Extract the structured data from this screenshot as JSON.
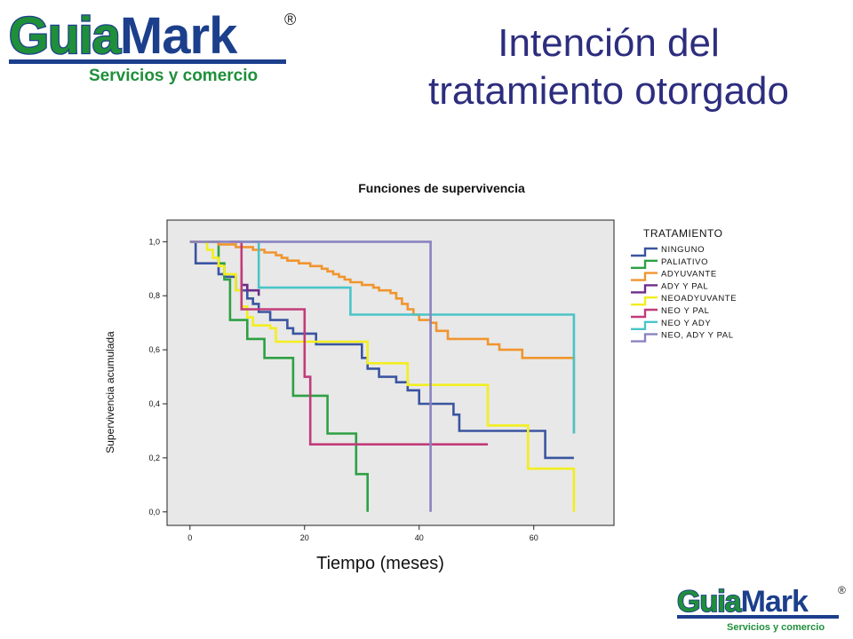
{
  "slide": {
    "title_line1": "Intención del",
    "title_line2": "tratamiento otorgado"
  },
  "logo": {
    "word_part1": "Guia",
    "word_part2": "Mark",
    "registered": "®",
    "tagline": "Servicios y comercio"
  },
  "colors": {
    "title": "#2d2d7f",
    "logo_green": "#1f8f3a",
    "logo_blue": "#1c3f8c",
    "plot_background": "#e8e8e8"
  },
  "chart_data": {
    "type": "line",
    "step": true,
    "title": "Funciones de supervivencia",
    "xlabel": "Tiempo (meses)",
    "ylabel": "Supervivencia acumulada",
    "xlim": [
      -4,
      74
    ],
    "ylim": [
      -0.05,
      1.08
    ],
    "x_ticks": [
      0,
      20,
      40,
      60
    ],
    "x_tick_labels": [
      "0",
      "20",
      "40",
      "60"
    ],
    "y_ticks": [
      0.0,
      0.2,
      0.4,
      0.6,
      0.8,
      1.0
    ],
    "y_tick_labels": [
      "0,0",
      "0,2",
      "0,4",
      "0,6",
      "0,8",
      "1,0"
    ],
    "grid": false,
    "legend_title": "TRATAMIENTO",
    "legend_position": "right",
    "series": [
      {
        "name": "NINGUNO",
        "color": "#3a55a0",
        "points": [
          [
            0,
            1.0
          ],
          [
            1,
            0.92
          ],
          [
            3,
            0.92
          ],
          [
            5,
            0.88
          ],
          [
            6,
            0.87
          ],
          [
            8,
            0.82
          ],
          [
            10,
            0.79
          ],
          [
            11,
            0.77
          ],
          [
            12,
            0.74
          ],
          [
            14,
            0.71
          ],
          [
            17,
            0.68
          ],
          [
            18,
            0.66
          ],
          [
            22,
            0.62
          ],
          [
            30,
            0.62
          ],
          [
            30,
            0.57
          ],
          [
            31,
            0.53
          ],
          [
            33,
            0.5
          ],
          [
            36,
            0.48
          ],
          [
            38,
            0.45
          ],
          [
            40,
            0.4
          ],
          [
            44,
            0.4
          ],
          [
            46,
            0.36
          ],
          [
            47,
            0.3
          ],
          [
            62,
            0.3
          ],
          [
            62,
            0.2
          ],
          [
            67,
            0.2
          ]
        ]
      },
      {
        "name": "PALIATIVO",
        "color": "#2ea043",
        "points": [
          [
            2,
            1.0
          ],
          [
            4,
            1.0
          ],
          [
            5,
            0.92
          ],
          [
            6,
            0.86
          ],
          [
            7,
            0.71
          ],
          [
            10,
            0.71
          ],
          [
            10,
            0.64
          ],
          [
            13,
            0.57
          ],
          [
            18,
            0.57
          ],
          [
            18,
            0.43
          ],
          [
            24,
            0.43
          ],
          [
            24,
            0.29
          ],
          [
            29,
            0.29
          ],
          [
            29,
            0.14
          ],
          [
            31,
            0.14
          ],
          [
            31,
            0.0
          ]
        ]
      },
      {
        "name": "ADYUVANTE",
        "color": "#f0952e",
        "points": [
          [
            0,
            1.0
          ],
          [
            5,
            0.99
          ],
          [
            8,
            0.98
          ],
          [
            11,
            0.97
          ],
          [
            13,
            0.96
          ],
          [
            15,
            0.95
          ],
          [
            16,
            0.94
          ],
          [
            17,
            0.93
          ],
          [
            19,
            0.92
          ],
          [
            21,
            0.91
          ],
          [
            23,
            0.9
          ],
          [
            24,
            0.89
          ],
          [
            25,
            0.88
          ],
          [
            26,
            0.87
          ],
          [
            27,
            0.86
          ],
          [
            28,
            0.85
          ],
          [
            30,
            0.84
          ],
          [
            32,
            0.83
          ],
          [
            33,
            0.82
          ],
          [
            35,
            0.81
          ],
          [
            36,
            0.79
          ],
          [
            37,
            0.77
          ],
          [
            38,
            0.75
          ],
          [
            39,
            0.73
          ],
          [
            40,
            0.71
          ],
          [
            42,
            0.7
          ],
          [
            43,
            0.67
          ],
          [
            45,
            0.64
          ],
          [
            51,
            0.64
          ],
          [
            52,
            0.62
          ],
          [
            54,
            0.6
          ],
          [
            58,
            0.6
          ],
          [
            58,
            0.57
          ],
          [
            67,
            0.57
          ],
          [
            67,
            0.36
          ],
          [
            67,
            0.29
          ]
        ]
      },
      {
        "name": "ADY Y PAL",
        "color": "#6e2c8a",
        "points": [
          [
            9,
            0.91
          ],
          [
            9,
            0.84
          ],
          [
            10,
            0.82
          ],
          [
            12,
            0.8
          ]
        ]
      },
      {
        "name": "NEOADYUVANTE",
        "color": "#f2ee1e",
        "points": [
          [
            2,
            1.0
          ],
          [
            3,
            0.97
          ],
          [
            4,
            0.94
          ],
          [
            5,
            0.91
          ],
          [
            6,
            0.88
          ],
          [
            8,
            0.82
          ],
          [
            9,
            0.76
          ],
          [
            10,
            0.72
          ],
          [
            11,
            0.69
          ],
          [
            14,
            0.68
          ],
          [
            15,
            0.63
          ],
          [
            31,
            0.63
          ],
          [
            31,
            0.55
          ],
          [
            38,
            0.55
          ],
          [
            38,
            0.47
          ],
          [
            52,
            0.47
          ],
          [
            52,
            0.32
          ],
          [
            59,
            0.32
          ],
          [
            59,
            0.16
          ],
          [
            67,
            0.16
          ],
          [
            67,
            0.0
          ]
        ]
      },
      {
        "name": "NEO Y PAL",
        "color": "#c23b7a",
        "points": [
          [
            7,
            1.0
          ],
          [
            9,
            1.0
          ],
          [
            9,
            0.75
          ],
          [
            20,
            0.75
          ],
          [
            20,
            0.5
          ],
          [
            21,
            0.5
          ],
          [
            21,
            0.25
          ],
          [
            52,
            0.25
          ]
        ]
      },
      {
        "name": "NEO Y ADY",
        "color": "#4ac4c8",
        "points": [
          [
            9,
            1.0
          ],
          [
            12,
            1.0
          ],
          [
            12,
            0.91
          ],
          [
            12,
            0.83
          ],
          [
            28,
            0.83
          ],
          [
            28,
            0.73
          ],
          [
            67,
            0.73
          ],
          [
            67,
            0.37
          ],
          [
            67,
            0.29
          ]
        ]
      },
      {
        "name": "NEO, ADY Y PAL",
        "color": "#8a83c0",
        "points": [
          [
            0,
            1.0
          ],
          [
            42,
            1.0
          ],
          [
            42,
            0.0
          ]
        ]
      }
    ]
  }
}
